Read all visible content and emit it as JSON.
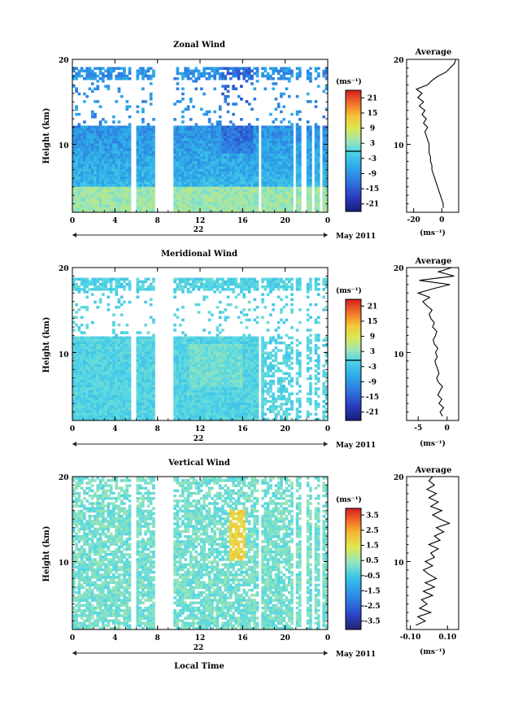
{
  "figure": {
    "xlabel": "Local Time",
    "date_label": "May 2011",
    "day_label": "22",
    "average_title": "Average",
    "cb_unit": "(ms⁻¹)",
    "avg_unit": "(ms⁻¹)"
  },
  "chart_data": [
    {
      "type": "heatmap",
      "title": "Zonal Wind",
      "xlabel": "Local Time",
      "ylabel": "Height (km)",
      "x_ticks": [
        "0",
        "4",
        "8",
        "12",
        "16",
        "20",
        "0"
      ],
      "y_ticks": [
        "20",
        "10"
      ],
      "xlim": [
        0,
        24
      ],
      "ylim": [
        2,
        20
      ],
      "colorbar": {
        "unit": "(ms⁻¹)",
        "ticks": [
          "21",
          "15",
          "9",
          "3",
          "-3",
          "-9",
          "-15",
          "-21"
        ],
        "range": [
          -24,
          24
        ],
        "zero_line": 0
      },
      "profile": {
        "title": "Average",
        "xlabel": "(ms⁻¹)",
        "x_ticks": [
          "-20",
          "0"
        ],
        "xlim": [
          -25,
          12
        ],
        "y_ticks": [
          "20",
          "10"
        ],
        "height_km": [
          2.5,
          3,
          3.5,
          4,
          4.5,
          5,
          5.5,
          6,
          6.5,
          7,
          7.5,
          8,
          8.5,
          9,
          9.5,
          10,
          10.5,
          11,
          11.5,
          12,
          12.5,
          13,
          13.5,
          14,
          14.5,
          15,
          15.5,
          16,
          16.5,
          17,
          17.5,
          18,
          18.5,
          19,
          19.5,
          20
        ],
        "values": [
          1,
          1,
          0,
          -1,
          -2,
          -3,
          -4,
          -5,
          -6,
          -7,
          -7,
          -8,
          -8,
          -9,
          -9,
          -9,
          -10,
          -11,
          -12,
          -10,
          -13,
          -11,
          -14,
          -12,
          -16,
          -13,
          -17,
          -14,
          -18,
          -10,
          -7,
          -3,
          3,
          6,
          9,
          10
        ]
      }
    },
    {
      "type": "heatmap",
      "title": "Meridional Wind",
      "xlabel": "Local Time",
      "ylabel": "Height (km)",
      "x_ticks": [
        "0",
        "4",
        "8",
        "12",
        "16",
        "20",
        "0"
      ],
      "y_ticks": [
        "20",
        "10"
      ],
      "xlim": [
        0,
        24
      ],
      "ylim": [
        2,
        20
      ],
      "colorbar": {
        "unit": "(ms⁻¹)",
        "ticks": [
          "21",
          "15",
          "9",
          "3",
          "-3",
          "-9",
          "-15",
          "-21"
        ],
        "range": [
          -24,
          24
        ],
        "zero_line": 0
      },
      "profile": {
        "title": "Average",
        "xlabel": "(ms⁻¹)",
        "x_ticks": [
          "-5",
          "0"
        ],
        "xlim": [
          -7,
          2
        ],
        "y_ticks": [
          "20",
          "10"
        ],
        "height_km": [
          2.5,
          3,
          3.5,
          4,
          4.5,
          5,
          5.5,
          6,
          6.5,
          7,
          7.5,
          8,
          8.5,
          9,
          9.5,
          10,
          10.5,
          11,
          11.5,
          12,
          12.5,
          13,
          13.5,
          14,
          14.5,
          15,
          15.5,
          16,
          16.5,
          17,
          17.5,
          18,
          18.5,
          19,
          19.5,
          20
        ],
        "values": [
          -0.8,
          -1.2,
          -0.6,
          -1.4,
          -0.9,
          -1.6,
          -1.2,
          -0.8,
          -1.5,
          -1.8,
          -1.4,
          -1.6,
          -1.9,
          -2.1,
          -1.7,
          -2.0,
          -1.6,
          -2.2,
          -2.4,
          -2.0,
          -1.8,
          -2.5,
          -2.2,
          -2.8,
          -3.1,
          -2.6,
          -3.5,
          -4.2,
          -3.0,
          -5.0,
          -2.5,
          0.5,
          -4.8,
          1.2,
          -1.5,
          0.8
        ]
      }
    },
    {
      "type": "heatmap",
      "title": "Vertical Wind",
      "xlabel": "Local Time",
      "ylabel": "Height (km)",
      "x_ticks": [
        "0",
        "4",
        "8",
        "12",
        "16",
        "20",
        "0"
      ],
      "y_ticks": [
        "20",
        "10"
      ],
      "xlim": [
        0,
        24
      ],
      "ylim": [
        2,
        20
      ],
      "colorbar": {
        "unit": "(ms⁻¹)",
        "ticks": [
          "3.5",
          "2.5",
          "1.5",
          "0.5",
          "-0.5",
          "-1.5",
          "-2.5",
          "-3.5"
        ],
        "range": [
          -4,
          4
        ]
      },
      "profile": {
        "title": "Average",
        "xlabel": "(ms⁻¹)",
        "x_ticks": [
          "-0.10",
          "0.10"
        ],
        "xlim": [
          -0.12,
          0.16
        ],
        "y_ticks": [
          "20",
          "10"
        ],
        "height_km": [
          2.5,
          3,
          3.5,
          4,
          4.5,
          5,
          5.5,
          6,
          6.5,
          7,
          7.5,
          8,
          8.5,
          9,
          9.5,
          10,
          10.5,
          11,
          11.5,
          12,
          12.5,
          13,
          13.5,
          14,
          14.5,
          15,
          15.5,
          16,
          16.5,
          17,
          17.5,
          18,
          18.5,
          19,
          19.5,
          20
        ],
        "values": [
          -0.07,
          -0.02,
          -0.06,
          0.01,
          -0.05,
          -0.01,
          -0.04,
          0.02,
          -0.03,
          0.03,
          -0.02,
          0.04,
          0.0,
          -0.03,
          0.02,
          -0.02,
          0.03,
          0.01,
          0.05,
          0.0,
          0.06,
          0.03,
          0.08,
          0.04,
          0.11,
          0.06,
          0.02,
          0.07,
          0.01,
          0.05,
          0.0,
          0.04,
          -0.01,
          0.03,
          0.0,
          0.02
        ]
      }
    }
  ]
}
